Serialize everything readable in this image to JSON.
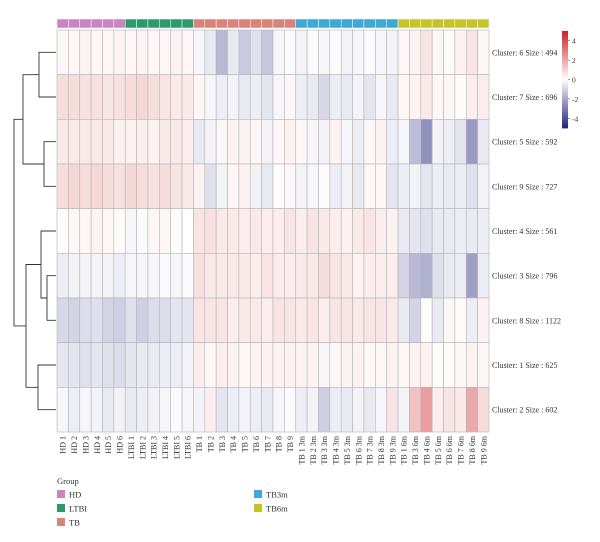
{
  "chart_data": {
    "type": "heatmap",
    "columns": [
      "HD 1",
      "HD 2",
      "HD 3",
      "HD 4",
      "HD 5",
      "HD 6",
      "LTBI 1",
      "LTBI 2",
      "LTBI 3",
      "LTBI 4",
      "LTBI 5",
      "LTBI 6",
      "TB 1",
      "TB 2",
      "TB 3",
      "TB 4",
      "TB 5",
      "TB 6",
      "TB 7",
      "TB 8",
      "TB 9",
      "TB 1 3m",
      "TB 2 3m",
      "TB 3 3m",
      "TB 4 3m",
      "TB 5 3m",
      "TB 6 3m",
      "TB 7 3m",
      "TB 8 3m",
      "TB 9 3m",
      "TB 1 6m",
      "TB 3 6m",
      "TB 4 6m",
      "TB 5 6m",
      "TB 6 6m",
      "TB 7 6m",
      "TB 8 6m",
      "TB 9 6m"
    ],
    "column_groups": [
      "HD",
      "HD",
      "HD",
      "HD",
      "HD",
      "HD",
      "LTBI",
      "LTBI",
      "LTBI",
      "LTBI",
      "LTBI",
      "LTBI",
      "TB",
      "TB",
      "TB",
      "TB",
      "TB",
      "TB",
      "TB",
      "TB",
      "TB",
      "TB3m",
      "TB3m",
      "TB3m",
      "TB3m",
      "TB3m",
      "TB3m",
      "TB3m",
      "TB3m",
      "TB3m",
      "TB6m",
      "TB6m",
      "TB6m",
      "TB6m",
      "TB6m",
      "TB6m",
      "TB6m",
      "TB6m"
    ],
    "rows": [
      "Cluster: 6 Size : 494",
      "Cluster: 7 Size : 696",
      "Cluster: 5 Size : 592",
      "Cluster: 9 Size : 727",
      "Cluster: 4 Size : 561",
      "Cluster: 3 Size : 796",
      "Cluster: 8 Size : 1122",
      "Cluster: 1 Size : 625",
      "Cluster: 2 Size : 602"
    ],
    "values": [
      [
        0.2,
        0.2,
        0.3,
        0.2,
        0.2,
        0.3,
        0.2,
        0.3,
        0.2,
        0.2,
        0.3,
        0.2,
        -0.2,
        -0.5,
        -1.6,
        -0.5,
        -1.2,
        -0.7,
        -1.3,
        -0.2,
        -0.1,
        -0.3,
        -0.1,
        -0.2,
        0.1,
        -0.3,
        -0.2,
        -0.1,
        -0.2,
        -0.3,
        0.2,
        0.3,
        0.6,
        0.2,
        0.1,
        0.3,
        0.6,
        0.2
      ],
      [
        0.8,
        0.8,
        0.7,
        0.7,
        0.6,
        0.7,
        0.8,
        0.9,
        0.8,
        0.6,
        0.5,
        0.5,
        0.2,
        -0.2,
        -0.4,
        -0.3,
        -0.5,
        -0.4,
        -0.6,
        -0.2,
        0.2,
        -0.4,
        -0.5,
        -0.9,
        -0.4,
        -0.5,
        -0.3,
        -0.6,
        -0.2,
        -0.5,
        0.2,
        0.3,
        0.5,
        0.2,
        0.2,
        0.1,
        0.4,
        0.4
      ],
      [
        0.5,
        0.5,
        0.5,
        0.5,
        0.5,
        0.3,
        0.3,
        0.4,
        0.3,
        0.5,
        0.5,
        0.4,
        -0.5,
        -0.3,
        0.2,
        0.3,
        0.3,
        0.2,
        -0.3,
        0.2,
        0.3,
        0.2,
        -0.2,
        -0.3,
        0.3,
        -0.2,
        -0.4,
        0.2,
        0.3,
        -0.4,
        -0.2,
        -1.5,
        -2.5,
        -0.3,
        -0.4,
        -0.6,
        -2.3,
        -0.5
      ],
      [
        0.8,
        0.9,
        0.8,
        0.9,
        0.8,
        0.7,
        0.9,
        0.8,
        0.7,
        0.8,
        0.6,
        0.5,
        0.3,
        -0.7,
        -0.3,
        0.2,
        0.3,
        -0.3,
        -0.5,
        0.1,
        0.2,
        -0.3,
        -0.2,
        0.1,
        -0.4,
        -0.3,
        -0.5,
        0.2,
        0.2,
        -0.6,
        -0.4,
        -0.3,
        -0.6,
        -0.4,
        -0.5,
        -0.4,
        -0.7,
        -0.3
      ],
      [
        0.1,
        0.2,
        0.2,
        0.3,
        0.2,
        0.1,
        -0.2,
        -0.1,
        0.2,
        0.2,
        0.1,
        0.0,
        0.6,
        0.7,
        0.5,
        0.5,
        0.4,
        0.5,
        0.4,
        0.4,
        0.6,
        0.4,
        0.6,
        0.5,
        0.4,
        0.3,
        0.5,
        0.6,
        0.4,
        0.3,
        -0.5,
        -0.6,
        -0.7,
        -0.5,
        -0.5,
        -0.4,
        -0.5,
        -0.4
      ],
      [
        -0.4,
        -0.3,
        -0.3,
        -0.3,
        -0.3,
        -0.4,
        -0.2,
        -0.2,
        -0.2,
        -0.1,
        -0.2,
        -0.1,
        0.7,
        0.5,
        0.5,
        0.5,
        0.5,
        0.4,
        0.6,
        0.4,
        0.4,
        0.5,
        0.5,
        0.8,
        0.6,
        0.5,
        0.3,
        0.4,
        0.4,
        0.4,
        -1.0,
        -1.6,
        -1.8,
        -0.7,
        -0.5,
        -0.4,
        -2.2,
        -0.4
      ],
      [
        -0.9,
        -1.0,
        -0.8,
        -0.7,
        -1.0,
        -1.1,
        -0.7,
        -1.1,
        -0.8,
        -0.8,
        -0.6,
        -0.6,
        0.6,
        0.6,
        0.6,
        0.4,
        0.5,
        0.5,
        0.4,
        0.6,
        0.6,
        0.5,
        0.6,
        0.4,
        0.6,
        0.6,
        0.5,
        0.6,
        0.6,
        0.5,
        -0.5,
        -1.0,
        0.1,
        -0.5,
        0.2,
        0.1,
        -0.4,
        0.3
      ],
      [
        -0.6,
        -0.6,
        -0.7,
        -0.6,
        -0.7,
        -0.8,
        -0.6,
        -0.5,
        -0.5,
        -0.4,
        -0.4,
        -0.3,
        0.4,
        0.2,
        0.4,
        0.3,
        0.2,
        0.3,
        0.3,
        0.3,
        0.3,
        0.3,
        0.3,
        -0.2,
        0.2,
        0.3,
        0.3,
        0.2,
        0.2,
        0.3,
        0.2,
        0.3,
        0.3,
        0.1,
        0.1,
        0.2,
        0.3,
        0.2
      ],
      [
        -0.2,
        -0.4,
        -0.2,
        -0.3,
        -0.5,
        -0.3,
        -0.5,
        -0.4,
        -0.3,
        -0.2,
        -0.1,
        -0.2,
        -0.3,
        0.4,
        -0.6,
        -0.4,
        -0.3,
        -0.4,
        -0.5,
        -0.2,
        -0.1,
        -0.4,
        -0.3,
        -1.1,
        -0.4,
        -0.5,
        -0.3,
        -0.5,
        -0.2,
        0.6,
        -0.3,
        1.4,
        2.2,
        0.4,
        0.6,
        0.5,
        2.0,
        0.8
      ]
    ],
    "groups": [
      {
        "name": "HD",
        "color": "#c985bf"
      },
      {
        "name": "LTBI",
        "color": "#2e9a6a"
      },
      {
        "name": "TB",
        "color": "#d9847a"
      },
      {
        "name": "TB3m",
        "color": "#3ea8d6"
      },
      {
        "name": "TB6m",
        "color": "#c5c52b"
      }
    ],
    "legend_title": "Group",
    "colorbar": {
      "ticks": [
        4,
        2,
        0,
        -2,
        -4
      ],
      "range": [
        -5,
        5
      ],
      "low_color": "#23237f",
      "mid_color": "#ffffff",
      "high_color": "#cc2227"
    },
    "dendrogram": "rows"
  }
}
